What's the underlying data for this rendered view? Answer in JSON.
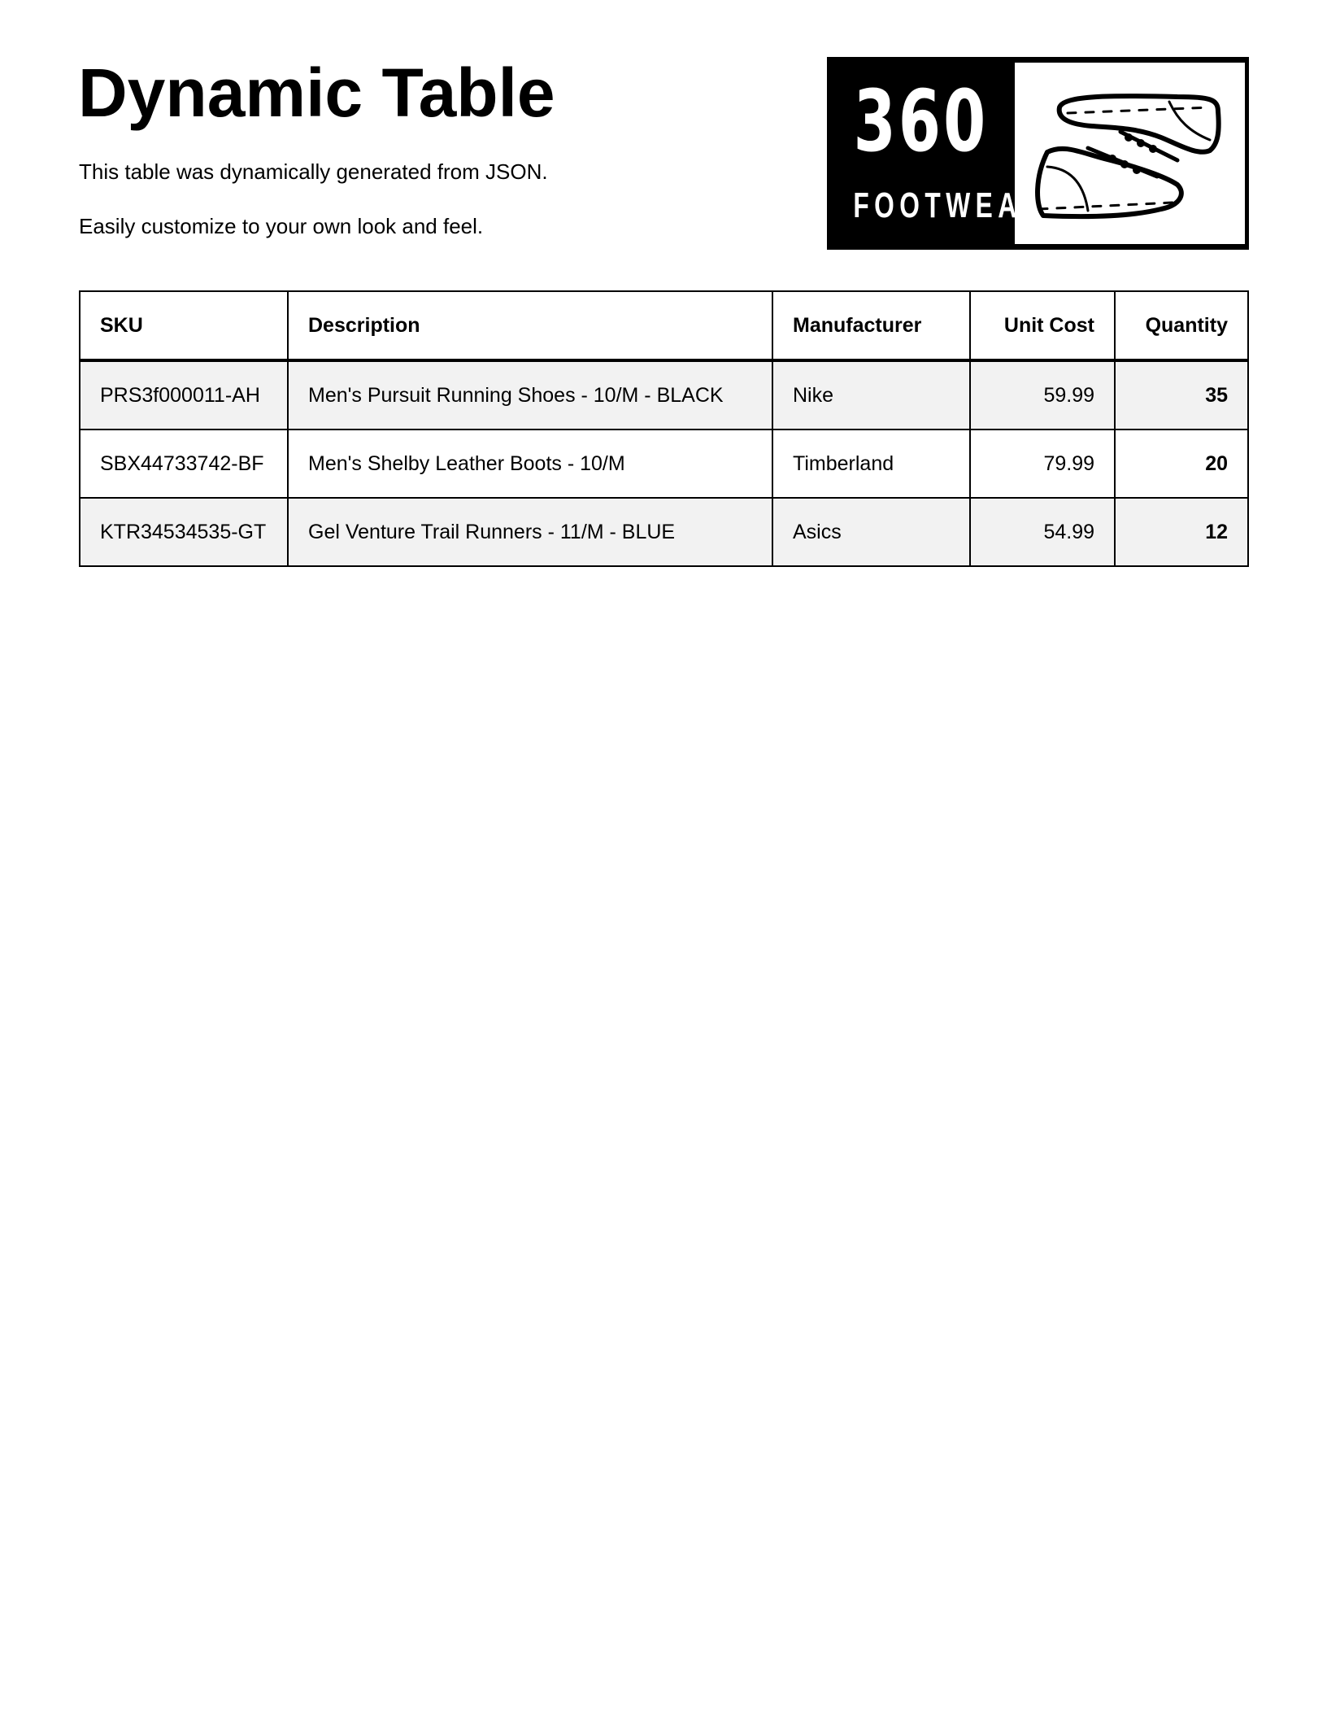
{
  "header": {
    "title": "Dynamic Table",
    "lines": [
      "This table was dynamically generated from JSON.",
      "Easily customize to your own look and feel."
    ]
  },
  "logo": {
    "number": "360",
    "word": "FOOTWEAR",
    "icon": "sneakers-icon"
  },
  "table": {
    "columns": [
      "SKU",
      "Description",
      "Manufacturer",
      "Unit Cost",
      "Quantity"
    ],
    "rows": [
      [
        "PRS3f000011-AH",
        "Men's Pursuit Running Shoes - 10/M - BLACK",
        "Nike",
        "59.99",
        "35"
      ],
      [
        "SBX44733742-BF",
        "Men's Shelby Leather Boots - 10/M",
        "Timberland",
        "79.99",
        "20"
      ],
      [
        "KTR34534535-GT",
        "Gel Venture Trail Runners - 11/M - BLUE",
        "Asics",
        "54.99",
        "12"
      ]
    ]
  },
  "colors": {
    "row_stripe": "#f2f2f2",
    "border": "#000000"
  }
}
